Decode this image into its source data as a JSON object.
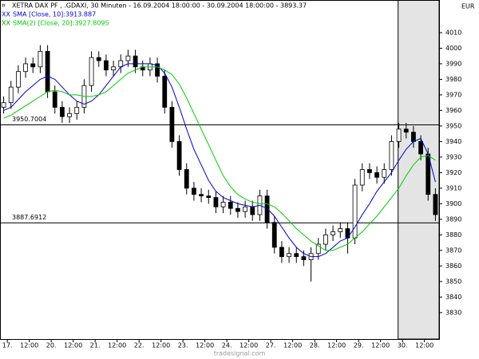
{
  "chart_data": {
    "type": "candlestick",
    "title": "XETRA DAX PF   , .GDAXI, 30 Minuten - 16.09.2004 18:00:00 - 30.09.2004 18:00:00 - 3893.37",
    "currency": "EUR",
    "footer": "tradesignal.com",
    "x": [
      0.5,
      1.5,
      2.5,
      3.5,
      4.5,
      5.5,
      6.5,
      7.5,
      8.5,
      9.5,
      10.5,
      11.5,
      12.5,
      13.5,
      14.5,
      15.5,
      16.5,
      17.5,
      18.5,
      19.5,
      20.5,
      21.5,
      22.5,
      23.5,
      24.5,
      25.5,
      26.5,
      27.5,
      28.5,
      29.5,
      30.5,
      31.5,
      32.5,
      33.5,
      34.5,
      35.5,
      36.5,
      37.5,
      38.5,
      39.5,
      40.5,
      41.5,
      42.5,
      43.5,
      44.5,
      45.5,
      46.5,
      47.5,
      48.5,
      49.5,
      50.5,
      51.5,
      52.5,
      53.5,
      54.5,
      55.5,
      56.5,
      57.5,
      58.5,
      59.5
    ],
    "open": [
      3962,
      3965,
      3975,
      3985,
      3990,
      3988,
      3998,
      3972,
      3962,
      3956,
      3958,
      3962,
      3976,
      3994,
      3992,
      3986,
      3988,
      3992,
      3995,
      3988,
      3986,
      3990,
      3982,
      3962,
      3940,
      3922,
      3910,
      3906,
      3905,
      3904,
      3898,
      3901,
      3897,
      3895,
      3898,
      3893,
      3905,
      3888,
      3872,
      3866,
      3868,
      3866,
      3864,
      3868,
      3874,
      3880,
      3882,
      3884,
      3878,
      3912,
      3922,
      3920,
      3917,
      3922,
      3940,
      3948,
      3946,
      3940,
      3932,
      3906
    ],
    "high": [
      3969,
      3979,
      3989,
      3994,
      3994,
      4002,
      4002,
      3976,
      3966,
      3962,
      3966,
      3980,
      3998,
      3998,
      3996,
      3992,
      3996,
      3999,
      3999,
      3992,
      3994,
      3994,
      3986,
      3966,
      3944,
      3926,
      3914,
      3910,
      3909,
      3908,
      3905,
      3905,
      3901,
      3902,
      3902,
      3909,
      3909,
      3892,
      3876,
      3872,
      3872,
      3870,
      3872,
      3878,
      3884,
      3886,
      3888,
      3888,
      3916,
      3926,
      3926,
      3924,
      3926,
      3944,
      3952,
      3952,
      3950,
      3944,
      3936,
      3910
    ],
    "low": [
      3958,
      3961,
      3971,
      3981,
      3984,
      3984,
      3968,
      3958,
      3952,
      3952,
      3954,
      3958,
      3972,
      3988,
      3982,
      3982,
      3984,
      3988,
      3984,
      3982,
      3982,
      3978,
      3958,
      3936,
      3918,
      3906,
      3902,
      3901,
      3900,
      3894,
      3894,
      3893,
      3891,
      3891,
      3889,
      3889,
      3884,
      3868,
      3862,
      3862,
      3862,
      3860,
      3850,
      3864,
      3870,
      3876,
      3878,
      3868,
      3874,
      3908,
      3916,
      3913,
      3913,
      3918,
      3936,
      3942,
      3936,
      3928,
      3902,
      3889
    ],
    "close": [
      3965,
      3975,
      3985,
      3990,
      3988,
      3998,
      3972,
      3962,
      3956,
      3958,
      3962,
      3976,
      3994,
      3992,
      3986,
      3988,
      3992,
      3995,
      3988,
      3986,
      3990,
      3982,
      3962,
      3940,
      3922,
      3910,
      3906,
      3905,
      3904,
      3898,
      3901,
      3897,
      3895,
      3898,
      3893,
      3905,
      3888,
      3872,
      3866,
      3868,
      3866,
      3864,
      3868,
      3874,
      3880,
      3882,
      3884,
      3878,
      3912,
      3922,
      3920,
      3917,
      3922,
      3940,
      3948,
      3946,
      3940,
      3932,
      3906,
      3893
    ],
    "up_color": "#ffffff",
    "down_color": "#000000",
    "wick_color": "#000000",
    "series": [
      {
        "name": "SMA [Close, 10]:3913.887",
        "color": "#0000cc",
        "values": [
          3960,
          3962,
          3967,
          3972,
          3976,
          3980,
          3982,
          3980,
          3975,
          3970,
          3966,
          3964,
          3966,
          3970,
          3976,
          3982,
          3988,
          3990,
          3990,
          3990,
          3990,
          3989,
          3984,
          3975,
          3962,
          3948,
          3935,
          3925,
          3915,
          3908,
          3904,
          3902,
          3900,
          3899,
          3898,
          3899,
          3897,
          3892,
          3885,
          3878,
          3872,
          3868,
          3866,
          3866,
          3868,
          3872,
          3876,
          3878,
          3885,
          3893,
          3900,
          3908,
          3914,
          3920,
          3928,
          3935,
          3940,
          3942,
          3932,
          3914
        ]
      },
      {
        "name": "SMA(2) [Close, 20]:3927.8095",
        "color": "#00cc00",
        "values": [
          3955,
          3957,
          3960,
          3963,
          3966,
          3969,
          3972,
          3973,
          3972,
          3970,
          3970,
          3969,
          3969,
          3970,
          3972,
          3976,
          3980,
          3984,
          3986,
          3988,
          3988,
          3988,
          3986,
          3983,
          3977,
          3968,
          3958,
          3948,
          3938,
          3928,
          3918,
          3911,
          3906,
          3903,
          3901,
          3900,
          3900,
          3898,
          3894,
          3889,
          3884,
          3880,
          3876,
          3873,
          3870,
          3870,
          3872,
          3874,
          3878,
          3882,
          3887,
          3892,
          3898,
          3904,
          3910,
          3918,
          3925,
          3930,
          3931,
          3928
        ]
      }
    ],
    "hlines": [
      3950.7004,
      3887.6912
    ],
    "highlight": [
      54.4,
      60
    ],
    "xlim": [
      0,
      60
    ],
    "xticks": [
      {
        "value": 1,
        "label": "17."
      },
      {
        "value": 4,
        "label": "12:00"
      },
      {
        "value": 7,
        "label": "20."
      },
      {
        "value": 10,
        "label": "12:00"
      },
      {
        "value": 13,
        "label": "21."
      },
      {
        "value": 16,
        "label": "12:00"
      },
      {
        "value": 19,
        "label": "22."
      },
      {
        "value": 22,
        "label": "12:00"
      },
      {
        "value": 25,
        "label": "23."
      },
      {
        "value": 28,
        "label": "12:00"
      },
      {
        "value": 31,
        "label": "24."
      },
      {
        "value": 34,
        "label": "12:00"
      },
      {
        "value": 37,
        "label": "27."
      },
      {
        "value": 40,
        "label": "12:00"
      },
      {
        "value": 43,
        "label": "28."
      },
      {
        "value": 46,
        "label": "12:00"
      },
      {
        "value": 49,
        "label": "29."
      },
      {
        "value": 52,
        "label": "12:00"
      },
      {
        "value": 55,
        "label": "30."
      },
      {
        "value": 58,
        "label": "12:00"
      }
    ],
    "ylim": [
      3813,
      4031
    ],
    "yticks": [
      3830,
      3840,
      3850,
      3860,
      3870,
      3880,
      3890,
      3900,
      3910,
      3920,
      3930,
      3940,
      3950,
      3960,
      3970,
      3980,
      3990,
      4000,
      4010
    ]
  }
}
